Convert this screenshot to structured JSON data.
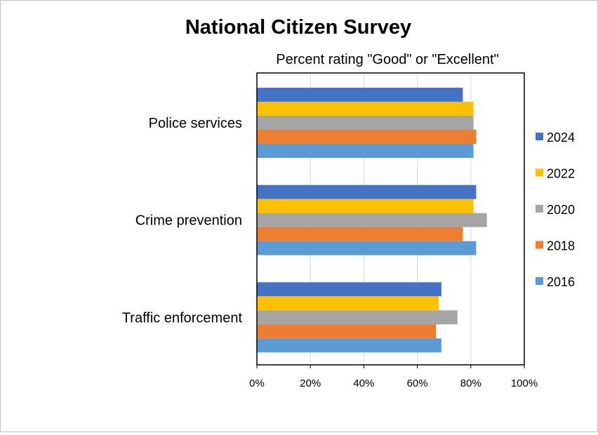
{
  "chart_data": {
    "type": "bar",
    "orientation": "horizontal",
    "title": "National Citizen Survey",
    "subtitle": "Percent rating \"Good\" or \"Excellent\"",
    "xlabel": "",
    "ylabel": "",
    "xlim": [
      0,
      100
    ],
    "x_ticks": [
      "0%",
      "20%",
      "40%",
      "60%",
      "80%",
      "100%"
    ],
    "x_tick_values": [
      0,
      20,
      40,
      60,
      80,
      100
    ],
    "grid": "vertical",
    "legend_position": "right",
    "categories": [
      "Police services",
      "Crime prevention",
      "Traffic enforcement"
    ],
    "series": [
      {
        "name": "2024",
        "color": "#4472c4",
        "values": [
          77,
          82,
          69
        ]
      },
      {
        "name": "2022",
        "color": "#ffc000",
        "values": [
          81,
          81,
          68
        ]
      },
      {
        "name": "2020",
        "color": "#a5a5a5",
        "values": [
          81,
          86,
          75
        ]
      },
      {
        "name": "2018",
        "color": "#ed7d31",
        "values": [
          82,
          77,
          67
        ]
      },
      {
        "name": "2016",
        "color": "#5b9bd5",
        "values": [
          81,
          82,
          69
        ]
      }
    ]
  }
}
